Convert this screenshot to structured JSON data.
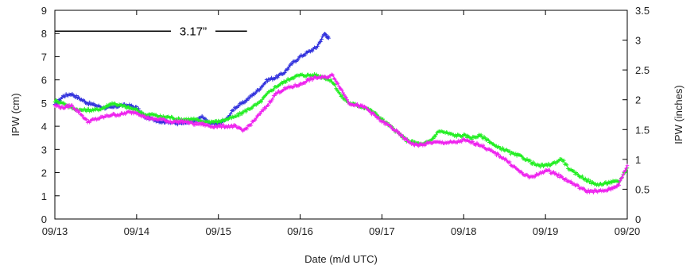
{
  "chart_data": {
    "type": "scatter",
    "xlabel": "Date (m/d UTC)",
    "ylabel_left": "IPW (cm)",
    "ylabel_right": "IPW (inches)",
    "x_ticks": [
      "09/13",
      "09/14",
      "09/15",
      "09/16",
      "09/17",
      "09/18",
      "09/19",
      "09/20"
    ],
    "xlim_days": [
      0,
      7
    ],
    "ylim_left": [
      0,
      9
    ],
    "ylim_right": [
      0,
      3.5
    ],
    "y_ticks_left": [
      0,
      1,
      2,
      3,
      4,
      5,
      6,
      7,
      8,
      9
    ],
    "y_ticks_right": [
      0,
      0.5,
      1,
      1.5,
      2,
      2.5,
      3,
      3.5
    ],
    "grid": false,
    "annotation": {
      "text": "3.17”",
      "x_range_days": [
        0,
        2.35
      ],
      "y": 8.1
    },
    "series": [
      {
        "color": "#3333dd",
        "x": [
          0,
          0.1,
          0.2,
          0.3,
          0.4,
          0.5,
          0.6,
          0.7,
          0.8,
          0.9,
          1.0,
          1.1,
          1.2,
          1.3,
          1.4,
          1.5,
          1.6,
          1.7,
          1.8,
          1.9,
          2.0,
          2.1,
          2.2,
          2.3,
          2.4,
          2.5,
          2.6,
          2.7,
          2.8,
          2.9,
          3.0,
          3.1,
          3.2,
          3.3,
          3.35
        ],
        "y": [
          4.9,
          5.3,
          5.4,
          5.2,
          5.0,
          4.9,
          4.8,
          4.8,
          4.9,
          4.9,
          4.8,
          4.4,
          4.3,
          4.2,
          4.2,
          4.1,
          4.2,
          4.2,
          4.4,
          4.1,
          4.1,
          4.3,
          4.8,
          5.0,
          5.3,
          5.6,
          6.0,
          6.1,
          6.3,
          6.7,
          7.0,
          7.2,
          7.4,
          8.0,
          7.8
        ]
      },
      {
        "color": "#22ee22",
        "x": [
          0,
          0.1,
          0.2,
          0.3,
          0.4,
          0.5,
          0.6,
          0.7,
          0.8,
          0.9,
          1.0,
          1.1,
          1.2,
          1.3,
          1.4,
          1.5,
          1.6,
          1.7,
          1.8,
          1.9,
          2.0,
          2.1,
          2.2,
          2.3,
          2.4,
          2.5,
          2.6,
          2.7,
          2.8,
          2.9,
          3.0,
          3.1,
          3.2,
          3.3,
          3.4,
          3.5,
          3.6,
          3.7,
          3.8,
          3.9,
          4.0,
          4.1,
          4.2,
          4.3,
          4.4,
          4.5,
          4.6,
          4.7,
          4.8,
          4.9,
          5.0,
          5.1,
          5.2,
          5.3,
          5.4,
          5.5,
          5.6,
          5.7,
          5.8,
          5.9,
          6.0,
          6.1,
          6.2,
          6.3,
          6.4,
          6.5,
          6.6,
          6.7,
          6.8,
          6.9,
          7.0
        ],
        "y": [
          5.1,
          5.0,
          4.8,
          4.7,
          4.7,
          4.7,
          4.8,
          5.0,
          4.9,
          4.8,
          4.7,
          4.5,
          4.5,
          4.4,
          4.4,
          4.3,
          4.3,
          4.3,
          4.2,
          4.2,
          4.2,
          4.3,
          4.4,
          4.6,
          4.8,
          5.0,
          5.4,
          5.7,
          5.9,
          6.1,
          6.2,
          6.2,
          6.2,
          6.1,
          5.9,
          5.3,
          5.0,
          4.9,
          4.8,
          4.6,
          4.3,
          4.0,
          3.7,
          3.4,
          3.3,
          3.2,
          3.4,
          3.8,
          3.7,
          3.6,
          3.6,
          3.5,
          3.6,
          3.4,
          3.1,
          3.0,
          2.8,
          2.7,
          2.5,
          2.3,
          2.3,
          2.4,
          2.6,
          2.1,
          1.9,
          1.7,
          1.5,
          1.5,
          1.6,
          1.6,
          2.2
        ]
      },
      {
        "color": "#ee22ee",
        "x": [
          0,
          0.1,
          0.2,
          0.3,
          0.4,
          0.5,
          0.6,
          0.7,
          0.8,
          0.9,
          1.0,
          1.1,
          1.2,
          1.3,
          1.4,
          1.5,
          1.6,
          1.7,
          1.8,
          1.9,
          2.0,
          2.1,
          2.2,
          2.3,
          2.4,
          2.5,
          2.6,
          2.7,
          2.8,
          2.9,
          3.0,
          3.1,
          3.2,
          3.3,
          3.4,
          3.5,
          3.6,
          3.7,
          3.8,
          3.9,
          4.0,
          4.1,
          4.2,
          4.3,
          4.4,
          4.5,
          4.6,
          4.7,
          4.8,
          4.9,
          5.0,
          5.1,
          5.2,
          5.3,
          5.4,
          5.5,
          5.6,
          5.7,
          5.8,
          5.9,
          6.0,
          6.1,
          6.2,
          6.3,
          6.4,
          6.5,
          6.6,
          6.7,
          6.8,
          6.9,
          7.0
        ],
        "y": [
          4.9,
          4.8,
          4.9,
          4.6,
          4.2,
          4.3,
          4.4,
          4.5,
          4.5,
          4.6,
          4.6,
          4.4,
          4.3,
          4.3,
          4.2,
          4.2,
          4.2,
          4.1,
          4.1,
          4.0,
          4.0,
          4.0,
          4.0,
          3.8,
          4.1,
          4.5,
          4.9,
          5.4,
          5.6,
          5.7,
          5.8,
          6.0,
          6.1,
          6.1,
          6.2,
          5.6,
          5.0,
          4.9,
          4.8,
          4.5,
          4.2,
          4.0,
          3.7,
          3.4,
          3.2,
          3.2,
          3.3,
          3.3,
          3.3,
          3.3,
          3.4,
          3.3,
          3.2,
          3.0,
          2.8,
          2.6,
          2.3,
          2.0,
          1.8,
          1.9,
          2.1,
          2.0,
          1.8,
          1.6,
          1.4,
          1.2,
          1.2,
          1.2,
          1.3,
          1.5,
          2.3
        ]
      }
    ]
  }
}
